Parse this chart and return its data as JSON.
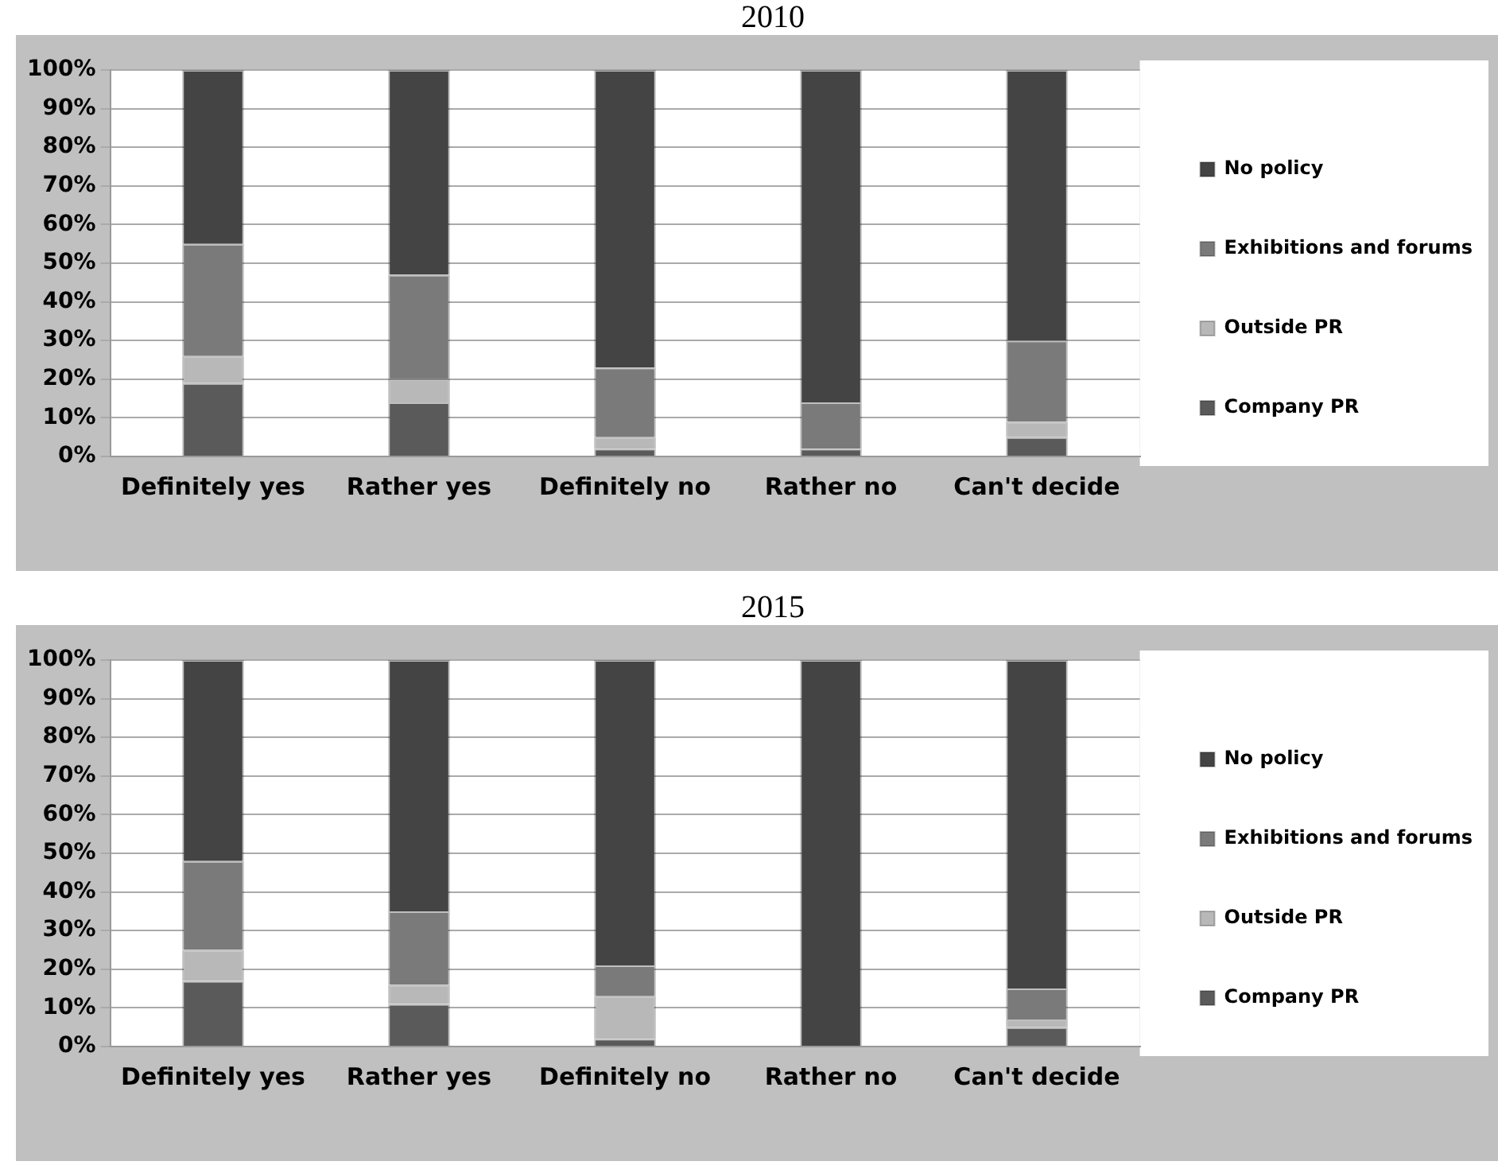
{
  "chart_data": [
    {
      "type": "bar",
      "title": "2010",
      "stacked": true,
      "categories": [
        "Definitely yes",
        "Rather yes",
        "Definitely no",
        "Rather no",
        "Can't decide"
      ],
      "series": [
        {
          "name": "Company PR",
          "color": "#5a5a5a",
          "values": [
            19,
            14,
            2,
            2,
            5
          ]
        },
        {
          "name": "Outside PR",
          "color": "#b8b8b8",
          "values": [
            7,
            6,
            3,
            0,
            4
          ]
        },
        {
          "name": "Exhibitions and forums",
          "color": "#7a7a7a",
          "values": [
            29,
            27,
            18,
            12,
            21
          ]
        },
        {
          "name": "No policy",
          "color": "#444444",
          "values": [
            45,
            53,
            77,
            86,
            70
          ]
        }
      ],
      "ylim": [
        0,
        100
      ],
      "yticks": [
        {
          "value": 0,
          "label": "0%"
        },
        {
          "value": 10,
          "label": "10%"
        },
        {
          "value": 20,
          "label": "20%"
        },
        {
          "value": 30,
          "label": "30%"
        },
        {
          "value": 40,
          "label": "40%"
        },
        {
          "value": 50,
          "label": "50%"
        },
        {
          "value": 60,
          "label": "60%"
        },
        {
          "value": 70,
          "label": "70%"
        },
        {
          "value": 80,
          "label": "80%"
        },
        {
          "value": 90,
          "label": "90%"
        },
        {
          "value": 100,
          "label": "100%"
        }
      ],
      "grid": "y",
      "legend": "right"
    },
    {
      "type": "bar",
      "title": "2015",
      "stacked": true,
      "categories": [
        "Definitely yes",
        "Rather yes",
        "Definitely no",
        "Rather no",
        "Can't decide"
      ],
      "series": [
        {
          "name": "Company PR",
          "color": "#5a5a5a",
          "values": [
            17,
            11,
            2,
            0,
            5
          ]
        },
        {
          "name": "Outside PR",
          "color": "#b8b8b8",
          "values": [
            8,
            5,
            11,
            0,
            2
          ]
        },
        {
          "name": "Exhibitions and forums",
          "color": "#7a7a7a",
          "values": [
            23,
            19,
            8,
            0,
            8
          ]
        },
        {
          "name": "No policy",
          "color": "#444444",
          "values": [
            52,
            65,
            79,
            100,
            85
          ]
        }
      ],
      "ylim": [
        0,
        100
      ],
      "yticks": [
        {
          "value": 0,
          "label": "0%"
        },
        {
          "value": 10,
          "label": "10%"
        },
        {
          "value": 20,
          "label": "20%"
        },
        {
          "value": 30,
          "label": "30%"
        },
        {
          "value": 40,
          "label": "40%"
        },
        {
          "value": 50,
          "label": "50%"
        },
        {
          "value": 60,
          "label": "60%"
        },
        {
          "value": 70,
          "label": "70%"
        },
        {
          "value": 80,
          "label": "80%"
        },
        {
          "value": 90,
          "label": "90%"
        },
        {
          "value": 100,
          "label": "100%"
        }
      ],
      "grid": "y",
      "legend": "right"
    }
  ]
}
